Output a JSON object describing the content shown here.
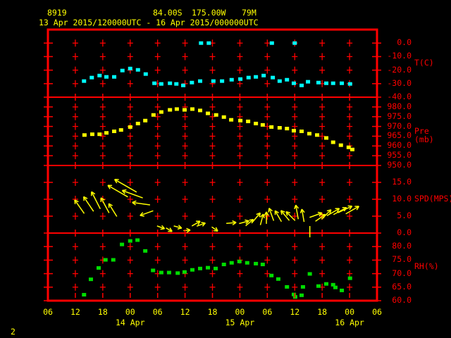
{
  "header": {
    "station_id": "8919",
    "latitude": "84.00S",
    "longitude": "175.00W",
    "elevation": "79M",
    "time_range": "13 Apr 2015/120000UTC - 16 Apr 2015/000000UTC"
  },
  "footer": {
    "page_number": "2"
  },
  "colors": {
    "background": "#000000",
    "grid_and_labels": "#ff0000",
    "axis_text": "#ffff00",
    "temperature": "#00ffff",
    "pressure": "#ffff00",
    "wind": "#ffff00",
    "humidity": "#00dd00"
  },
  "x_axis": {
    "hours_span": 72,
    "tick_step_hours": 6,
    "tick_labels": [
      "06",
      "12",
      "18",
      "00",
      "06",
      "12",
      "18",
      "00",
      "06",
      "12",
      "18",
      "00",
      "06"
    ],
    "date_labels": [
      {
        "label": "14 Apr",
        "tick_index": 3
      },
      {
        "label": "15 Apr",
        "tick_index": 7
      },
      {
        "label": "16 Apr",
        "tick_index": 11
      }
    ]
  },
  "chart_data": [
    {
      "type": "scatter",
      "name": "temperature",
      "label": "T(C)",
      "color": "#00ffff",
      "ylim": [
        -40,
        10
      ],
      "yticks": [
        0.0,
        -10.0,
        -20.0,
        -30.0,
        -40.0
      ],
      "points": [
        [
          7.9,
          -28.1
        ],
        [
          9.6,
          -25.5
        ],
        [
          11.3,
          -24.0
        ],
        [
          12.8,
          -25.0
        ],
        [
          14.5,
          -25.0
        ],
        [
          16.3,
          -20.3
        ],
        [
          18.0,
          -18.8
        ],
        [
          19.7,
          -19.8
        ],
        [
          21.4,
          -22.9
        ],
        [
          23.3,
          -29.7
        ],
        [
          24.8,
          -30.2
        ],
        [
          26.7,
          -29.7
        ],
        [
          28.1,
          -30.2
        ],
        [
          29.6,
          -31.3
        ],
        [
          31.5,
          -29.2
        ],
        [
          33.3,
          -28.1
        ],
        [
          33.5,
          0.0
        ],
        [
          35.2,
          0.0
        ],
        [
          36.2,
          -28.1
        ],
        [
          38.1,
          -28.1
        ],
        [
          40.2,
          -27.1
        ],
        [
          42.1,
          -26.6
        ],
        [
          43.9,
          -25.5
        ],
        [
          45.5,
          -25.0
        ],
        [
          47.2,
          -24.0
        ],
        [
          49.0,
          0.0
        ],
        [
          49.2,
          -25.5
        ],
        [
          50.7,
          -28.1
        ],
        [
          52.3,
          -27.1
        ],
        [
          53.8,
          -29.7
        ],
        [
          54.0,
          0.0
        ],
        [
          55.5,
          -31.3
        ],
        [
          56.9,
          -28.6
        ],
        [
          59.2,
          -29.2
        ],
        [
          60.9,
          -29.7
        ],
        [
          62.4,
          -29.7
        ],
        [
          64.3,
          -29.7
        ],
        [
          66.1,
          -30.2
        ]
      ]
    },
    {
      "type": "scatter",
      "name": "pressure",
      "label": "Pre (mb)",
      "color": "#ffff00",
      "ylim": [
        950,
        985
      ],
      "yticks": [
        980.0,
        975.0,
        970.0,
        965.0,
        960.0,
        955.0,
        950.0
      ],
      "points": [
        [
          8.0,
          965.6
        ],
        [
          9.7,
          966.0
        ],
        [
          11.3,
          966.0
        ],
        [
          12.8,
          966.7
        ],
        [
          14.5,
          967.5
        ],
        [
          16.0,
          968.2
        ],
        [
          18.0,
          969.7
        ],
        [
          19.7,
          971.5
        ],
        [
          21.3,
          973.0
        ],
        [
          23.1,
          975.9
        ],
        [
          24.8,
          977.4
        ],
        [
          26.7,
          978.5
        ],
        [
          28.2,
          978.9
        ],
        [
          29.9,
          978.5
        ],
        [
          31.6,
          978.9
        ],
        [
          33.3,
          978.2
        ],
        [
          35.0,
          976.7
        ],
        [
          36.8,
          975.9
        ],
        [
          38.5,
          974.8
        ],
        [
          40.1,
          973.4
        ],
        [
          42.1,
          973.0
        ],
        [
          43.8,
          972.6
        ],
        [
          45.5,
          971.5
        ],
        [
          47.0,
          970.8
        ],
        [
          48.9,
          969.7
        ],
        [
          50.7,
          969.3
        ],
        [
          52.3,
          968.9
        ],
        [
          53.8,
          967.8
        ],
        [
          55.5,
          967.5
        ],
        [
          57.2,
          966.3
        ],
        [
          58.9,
          965.6
        ],
        [
          60.9,
          964.1
        ],
        [
          62.4,
          961.9
        ],
        [
          64.1,
          960.4
        ],
        [
          65.8,
          959.3
        ],
        [
          66.6,
          958.2
        ]
      ]
    },
    {
      "type": "wind-vector",
      "name": "wind-speed",
      "label": "SPD(MPS)",
      "color": "#ffff00",
      "ylim": [
        0,
        20
      ],
      "yticks": [
        15.0,
        10.0,
        5.0,
        0.0
      ],
      "arrows": [
        [
          6.9,
          7.8,
          125
        ],
        [
          8.9,
          8.6,
          124
        ],
        [
          10.5,
          9.7,
          117
        ],
        [
          12.5,
          8.2,
          118
        ],
        [
          14.2,
          6.8,
          122
        ],
        [
          15.3,
          12.4,
          150
        ],
        [
          17.0,
          14.0,
          150
        ],
        [
          18.5,
          11.5,
          160
        ],
        [
          20.4,
          8.7,
          172
        ],
        [
          21.6,
          5.9,
          200
        ],
        [
          24.7,
          1.7,
          -20
        ],
        [
          26.5,
          1.0,
          -30
        ],
        [
          28.4,
          1.8,
          -15
        ],
        [
          30.4,
          0.8,
          5
        ],
        [
          32.4,
          2.8,
          30
        ],
        [
          33.5,
          2.5,
          20
        ],
        [
          36.5,
          1.2,
          -35
        ],
        [
          40.1,
          3.0,
          5
        ],
        [
          42.9,
          3.2,
          15
        ],
        [
          44.1,
          3.1,
          40
        ],
        [
          45.6,
          4.6,
          50
        ],
        [
          46.8,
          4.0,
          75
        ],
        [
          47.8,
          4.5,
          90
        ],
        [
          48.9,
          5.5,
          110
        ],
        [
          50.4,
          5.0,
          120
        ],
        [
          51.9,
          5.2,
          130
        ],
        [
          53.1,
          5.0,
          135
        ],
        [
          54.5,
          6.2,
          100
        ],
        [
          55.8,
          5.2,
          100
        ],
        [
          57.3,
          0.0,
          0
        ],
        [
          58.6,
          5.3,
          20
        ],
        [
          59.6,
          4.5,
          35
        ],
        [
          60.9,
          5.5,
          45
        ],
        [
          62.4,
          6.2,
          30
        ],
        [
          63.9,
          6.5,
          28
        ],
        [
          65.0,
          7.0,
          25
        ],
        [
          66.6,
          6.8,
          30
        ]
      ]
    },
    {
      "type": "scatter",
      "name": "relative-humidity",
      "label": "RH(%)",
      "color": "#00dd00",
      "ylim": [
        60,
        85
      ],
      "yticks": [
        80.0,
        75.0,
        70.0,
        65.0,
        60.0
      ],
      "points": [
        [
          7.9,
          62.2
        ],
        [
          9.4,
          67.9
        ],
        [
          11.1,
          72.1
        ],
        [
          12.6,
          75.1
        ],
        [
          14.3,
          75.1
        ],
        [
          16.2,
          80.8
        ],
        [
          18.0,
          82.1
        ],
        [
          19.6,
          82.4
        ],
        [
          21.3,
          78.4
        ],
        [
          23.0,
          71.2
        ],
        [
          24.8,
          70.4
        ],
        [
          26.5,
          70.4
        ],
        [
          28.4,
          70.2
        ],
        [
          29.9,
          70.6
        ],
        [
          31.6,
          71.4
        ],
        [
          33.3,
          71.9
        ],
        [
          35.0,
          72.2
        ],
        [
          36.7,
          71.9
        ],
        [
          38.5,
          73.4
        ],
        [
          40.2,
          74.0
        ],
        [
          41.9,
          74.5
        ],
        [
          43.6,
          74.0
        ],
        [
          45.5,
          73.7
        ],
        [
          47.0,
          73.4
        ],
        [
          48.9,
          69.3
        ],
        [
          50.4,
          68.0
        ],
        [
          52.3,
          65.1
        ],
        [
          53.8,
          62.3
        ],
        [
          54.1,
          61.4
        ],
        [
          55.5,
          62.0
        ],
        [
          55.8,
          65.1
        ],
        [
          57.3,
          69.9
        ],
        [
          59.2,
          65.4
        ],
        [
          60.9,
          66.2
        ],
        [
          62.4,
          65.9
        ],
        [
          62.9,
          64.9
        ],
        [
          64.3,
          63.8
        ],
        [
          66.1,
          68.3
        ]
      ]
    }
  ]
}
